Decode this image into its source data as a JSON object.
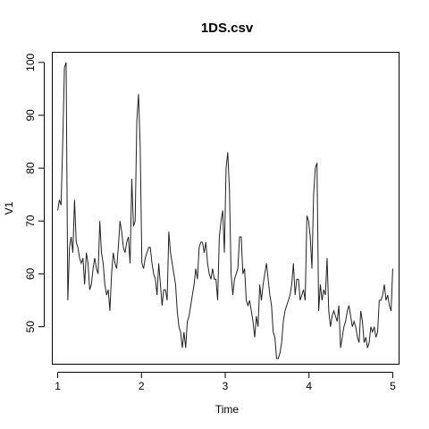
{
  "chart_data": {
    "type": "line",
    "title": "1DS.csv",
    "xlabel": "Time",
    "ylabel": "V1",
    "xlim": [
      0.93,
      5.07
    ],
    "ylim": [
      43,
      102
    ],
    "xticks": [
      1,
      2,
      3,
      4,
      5
    ],
    "yticks": [
      50,
      60,
      70,
      80,
      90,
      100
    ],
    "grid": false,
    "series": [
      {
        "values": [
          72,
          74,
          73,
          85,
          99,
          100,
          55,
          65,
          67,
          64,
          74,
          66,
          65,
          63,
          62,
          63,
          58,
          64,
          62,
          57,
          58,
          61,
          63,
          61,
          60,
          70,
          64,
          62,
          58,
          56,
          57,
          53,
          60,
          64,
          62,
          61,
          65,
          70,
          68,
          65,
          64,
          66,
          67,
          62,
          78,
          69,
          70,
          89,
          94,
          84,
          62,
          61,
          63,
          64,
          65,
          65,
          62,
          60,
          59,
          56,
          62,
          58,
          54,
          57,
          57,
          55,
          68,
          64,
          62,
          60,
          58,
          53,
          50,
          49,
          46,
          49,
          46,
          51,
          52,
          54,
          56,
          58,
          61,
          59,
          65,
          66,
          66,
          64,
          66,
          62,
          60,
          59,
          61,
          59,
          59,
          55,
          67,
          70,
          72,
          64,
          80,
          83,
          76,
          60,
          56,
          59,
          60,
          61,
          67,
          67,
          60,
          61,
          55,
          54,
          55,
          53,
          51,
          48,
          52,
          50,
          58,
          55,
          58,
          60,
          62,
          59,
          56,
          54,
          49,
          48,
          44,
          44,
          45,
          47,
          51,
          53,
          54,
          55,
          56,
          58,
          62,
          56,
          59,
          59,
          55,
          56,
          57,
          55,
          71,
          70,
          67,
          61,
          75,
          80,
          81,
          53,
          58,
          55,
          57,
          56,
          63,
          53,
          50,
          52,
          53,
          52,
          51,
          54,
          46,
          48,
          50,
          51,
          53,
          54,
          52,
          50,
          51,
          50,
          48,
          47,
          53,
          51,
          47,
          48,
          46,
          47,
          50,
          49,
          50,
          48,
          49,
          55,
          55,
          56,
          58,
          55,
          56,
          54,
          53,
          61
        ]
      }
    ]
  }
}
